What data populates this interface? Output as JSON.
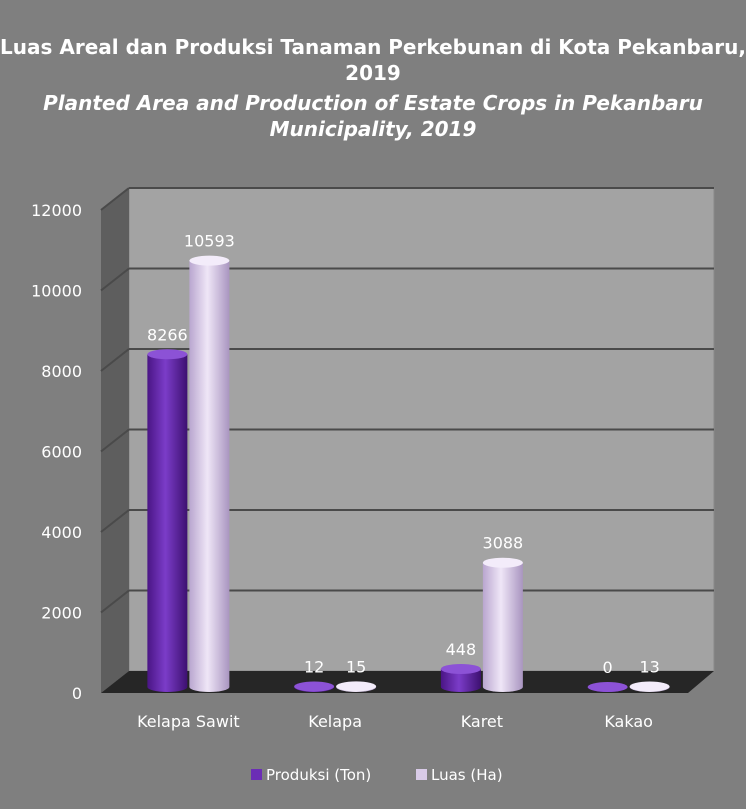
{
  "title_id": "Luas Areal dan Produksi Tanaman Perkebunan  di Kota Pekanbaru, 2019",
  "title_en": "Planted Area and Production of Estate Crops in Pekanbaru Municipality, 2019",
  "colors": {
    "background": "#7f7f7f",
    "plot_wall": "#a3a3a3",
    "floor": "#262626",
    "produksi": "#6b2db5",
    "luas": "#d9cbe8"
  },
  "chart_data": {
    "type": "bar",
    "categories": [
      "Kelapa Sawit",
      "Kelapa",
      "Karet",
      "Kakao"
    ],
    "series": [
      {
        "name": "Produksi (Ton)",
        "values": [
          8266,
          12,
          448,
          0
        ]
      },
      {
        "name": "Luas (Ha)",
        "values": [
          10593,
          15,
          3088,
          13
        ]
      }
    ],
    "data_labels": [
      [
        "8266",
        "12",
        "448",
        "0"
      ],
      [
        "10593",
        "15",
        "3088",
        "13"
      ]
    ],
    "yticks": [
      "0",
      "2000",
      "4000",
      "6000",
      "8000",
      "10000",
      "12000"
    ],
    "ylim": [
      0,
      12000
    ],
    "grid": true,
    "legend": "bottom",
    "three_d": true
  }
}
